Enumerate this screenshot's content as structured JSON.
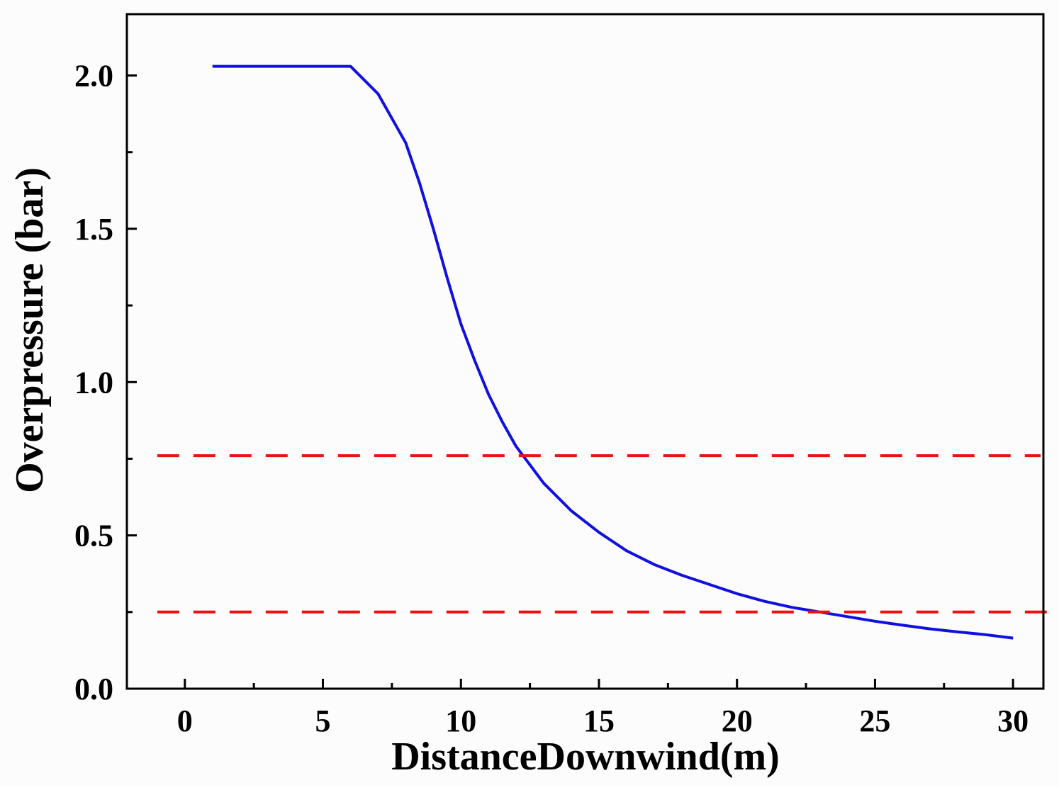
{
  "chart_data": {
    "type": "line",
    "title": "",
    "xlabel": "DistanceDownwind(m)",
    "ylabel": "Overpressure (bar)",
    "xlim": [
      -2.1,
      31.1
    ],
    "ylim": [
      0,
      2.2
    ],
    "x_ticks": [
      0,
      5,
      10,
      15,
      20,
      25,
      30
    ],
    "x_tick_labels": [
      "0",
      "5",
      "10",
      "15",
      "20",
      "25",
      "30"
    ],
    "y_ticks": [
      0.0,
      0.5,
      1.0,
      1.5,
      2.0
    ],
    "y_tick_labels": [
      "0.0",
      "0.5",
      "1.0",
      "1.5",
      "2.0"
    ],
    "grid": false,
    "legend": "none",
    "series": [
      {
        "color": "#1010e0",
        "style": "solid",
        "x": [
          1,
          6,
          7,
          8,
          8.5,
          9,
          9.5,
          10,
          10.5,
          11,
          11.5,
          12,
          12.5,
          13,
          14,
          15,
          16,
          17,
          18,
          19,
          20,
          21,
          22,
          23,
          24,
          25,
          26,
          27,
          28,
          29,
          30
        ],
        "y": [
          2.03,
          2.03,
          1.94,
          1.78,
          1.65,
          1.5,
          1.34,
          1.19,
          1.07,
          0.96,
          0.87,
          0.79,
          0.73,
          0.67,
          0.58,
          0.51,
          0.45,
          0.405,
          0.37,
          0.34,
          0.31,
          0.285,
          0.265,
          0.25,
          0.235,
          0.22,
          0.207,
          0.195,
          0.185,
          0.176,
          0.165
        ]
      },
      {
        "color": "#ee1111",
        "style": "dashed",
        "x": [
          -1,
          31
        ],
        "y": [
          0.76,
          0.76
        ]
      },
      {
        "color": "#ee1111",
        "style": "dashed",
        "x": [
          -1,
          32
        ],
        "y": [
          0.25,
          0.25
        ]
      }
    ]
  }
}
